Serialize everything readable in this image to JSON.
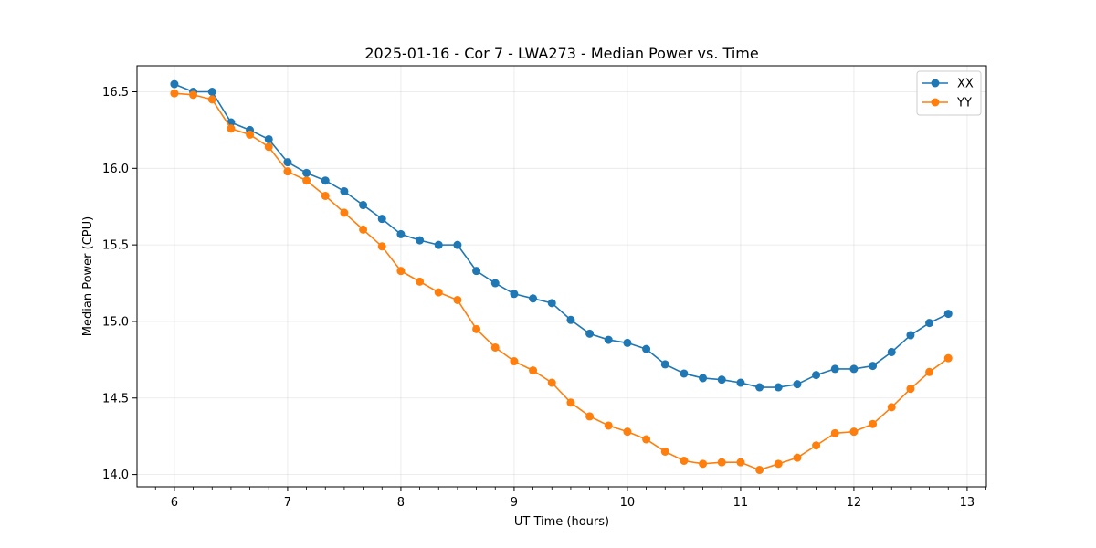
{
  "chart_data": {
    "type": "line",
    "title": "2025-01-16 - Cor 7 - LWA273 - Median Power vs. Time",
    "xlabel": "UT Time (hours)",
    "ylabel": "Median Power (CPU)",
    "xlim": [
      5.67,
      13.17
    ],
    "ylim": [
      13.92,
      16.67
    ],
    "xticks": [
      6,
      7,
      8,
      9,
      10,
      11,
      12,
      13
    ],
    "xtick_labels": [
      "6",
      "7",
      "8",
      "9",
      "10",
      "11",
      "12",
      "13"
    ],
    "yticks": [
      14.0,
      14.5,
      15.0,
      15.5,
      16.0,
      16.5
    ],
    "ytick_labels": [
      "14.0",
      "14.5",
      "15.0",
      "15.5",
      "16.0",
      "16.5"
    ],
    "grid": true,
    "legend_position": "top-right",
    "x": [
      6.0,
      6.1667,
      6.3333,
      6.5,
      6.6667,
      6.8333,
      7.0,
      7.1667,
      7.3333,
      7.5,
      7.6667,
      7.8333,
      8.0,
      8.1667,
      8.3333,
      8.5,
      8.6667,
      8.8333,
      9.0,
      9.1667,
      9.3333,
      9.5,
      9.6667,
      9.8333,
      10.0,
      10.1667,
      10.3333,
      10.5,
      10.6667,
      10.8333,
      11.0,
      11.1667,
      11.3333,
      11.5,
      11.6667,
      11.8333,
      12.0,
      12.1667,
      12.3333,
      12.5,
      12.6667,
      12.8333
    ],
    "series": [
      {
        "name": "XX",
        "color": "#1f77b4",
        "values": [
          16.55,
          16.5,
          16.5,
          16.3,
          16.25,
          16.19,
          16.04,
          15.97,
          15.92,
          15.85,
          15.76,
          15.67,
          15.57,
          15.53,
          15.5,
          15.5,
          15.33,
          15.25,
          15.18,
          15.15,
          15.12,
          15.01,
          14.92,
          14.88,
          14.86,
          14.82,
          14.72,
          14.66,
          14.63,
          14.62,
          14.6,
          14.57,
          14.57,
          14.59,
          14.65,
          14.69,
          14.69,
          14.71,
          14.8,
          14.91,
          14.99,
          15.05
        ]
      },
      {
        "name": "YY",
        "color": "#ff7f0e",
        "values": [
          16.49,
          16.48,
          16.45,
          16.26,
          16.22,
          16.14,
          15.98,
          15.92,
          15.82,
          15.71,
          15.6,
          15.49,
          15.33,
          15.26,
          15.19,
          15.14,
          14.95,
          14.83,
          14.74,
          14.68,
          14.6,
          14.47,
          14.38,
          14.32,
          14.28,
          14.23,
          14.15,
          14.09,
          14.07,
          14.08,
          14.08,
          14.03,
          14.07,
          14.11,
          14.19,
          14.27,
          14.28,
          14.33,
          14.44,
          14.56,
          14.67,
          14.76
        ]
      }
    ]
  }
}
